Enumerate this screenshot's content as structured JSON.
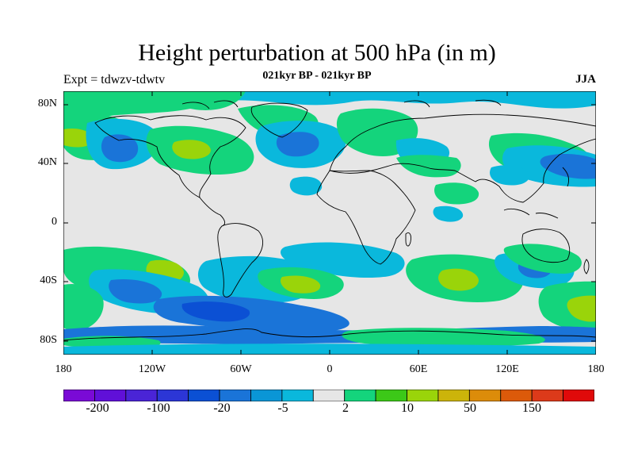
{
  "map": {
    "title": "Height perturbation at 500 hPa (in m)",
    "subtitle": "021kyr BP - 021kyr BP",
    "left_string": "Expt = tdwzv-tdwtv",
    "right_string": "JJA",
    "lat_ticks": [
      "80N",
      "40N",
      "0",
      "40S",
      "80S"
    ],
    "lon_ticks": [
      "180",
      "120W",
      "60W",
      "0",
      "60E",
      "120E",
      "180"
    ]
  },
  "colorbar": {
    "colors": [
      "#7a0ad6",
      "#6010d8",
      "#4a24d6",
      "#2c36d6",
      "#0b50d4",
      "#1a74d8",
      "#0a96d6",
      "#0ab8dc",
      "#e6e6e6",
      "#14d47c",
      "#3cc818",
      "#9ad40a",
      "#ccb40a",
      "#dc8c0a",
      "#dc5a0a",
      "#dc3a1a",
      "#e00a0a"
    ],
    "labels": [
      "-200",
      "-100",
      "-20",
      "-5",
      "2",
      "10",
      "50",
      "150"
    ]
  }
}
